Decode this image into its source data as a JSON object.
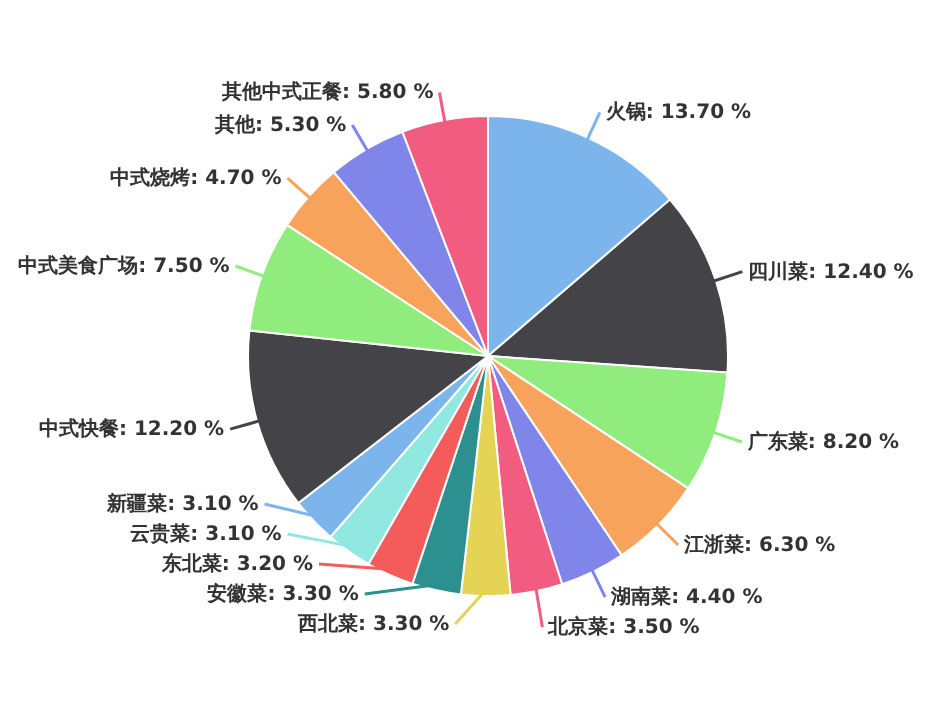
{
  "chart_data": {
    "type": "pie",
    "categories": [
      "火锅",
      "四川菜",
      "广东菜",
      "江浙菜",
      "湖南菜",
      "北京菜",
      "西北菜",
      "安徽菜",
      "东北菜",
      "云贵菜",
      "新疆菜",
      "中式快餐",
      "中式美食广场",
      "中式烧烤",
      "其他",
      "其他中式正餐"
    ],
    "values": [
      13.7,
      12.4,
      8.2,
      6.3,
      4.4,
      3.5,
      3.3,
      3.3,
      3.2,
      3.1,
      3.1,
      12.2,
      7.5,
      4.7,
      5.3,
      5.8
    ],
    "value_labels": [
      "13.70 %",
      "12.40 %",
      "8.20 %",
      "6.30 %",
      "4.40 %",
      "3.50 %",
      "3.30 %",
      "3.30 %",
      "3.20 %",
      "3.10 %",
      "3.10 %",
      "12.20 %",
      "7.50 %",
      "4.70 %",
      "5.30 %",
      "5.80 %"
    ],
    "colors": [
      "#7cb5ec",
      "#434348",
      "#90ed7d",
      "#f7a35c",
      "#8085e9",
      "#f15c80",
      "#e4d354",
      "#2b908f",
      "#f45b5b",
      "#91e8e1",
      "#7cb5ec",
      "#434348",
      "#90ed7d",
      "#f7a35c",
      "#8085e9",
      "#f15c80"
    ]
  }
}
